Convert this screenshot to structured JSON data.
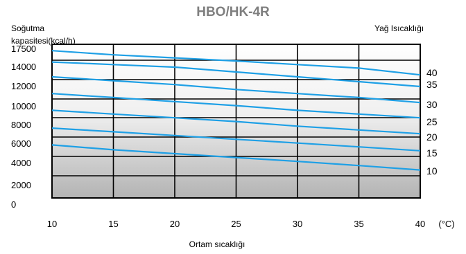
{
  "chart_data": {
    "type": "line",
    "title": "HBO/HK-4R",
    "ylabel_line1": "Soğutma",
    "ylabel_line2": "kapasitesi(kcal/h)",
    "xlabel": "Ortam sıcaklığı",
    "x_unit": "(°C)",
    "right_label": "Yağ Isıcaklığı",
    "x": [
      10,
      15,
      20,
      25,
      30,
      35,
      40
    ],
    "y_ticks": [
      {
        "label": "17500",
        "value": 17500
      },
      {
        "label": "14000",
        "value": 14000
      },
      {
        "label": "12000",
        "value": 12000
      },
      {
        "label": "10000",
        "value": 10000
      },
      {
        "label": "8000",
        "value": 8000
      },
      {
        "label": "6000",
        "value": 6000
      },
      {
        "label": "4000",
        "value": 4000
      },
      {
        "label": "2000",
        "value": 2000
      },
      {
        "label": "0",
        "value": 0
      }
    ],
    "series": [
      {
        "name": "40",
        "values": [
          17200,
          16400,
          15800,
          15200,
          14500,
          13900,
          13200
        ]
      },
      {
        "name": "35",
        "values": [
          15000,
          14500,
          14000,
          13500,
          13000,
          12500,
          12000
        ]
      },
      {
        "name": "30",
        "values": [
          13000,
          12600,
          12200,
          11700,
          11300,
          10900,
          10400
        ]
      },
      {
        "name": "25",
        "values": [
          11300,
          10900,
          10500,
          10100,
          9600,
          9200,
          8800
        ]
      },
      {
        "name": "20",
        "values": [
          9600,
          9200,
          8800,
          8400,
          7900,
          7500,
          7100
        ]
      },
      {
        "name": "15",
        "values": [
          7700,
          7300,
          6900,
          6500,
          6100,
          5700,
          5300
        ]
      },
      {
        "name": "10",
        "values": [
          5900,
          5400,
          5000,
          4600,
          4200,
          3800,
          3400
        ]
      }
    ],
    "line_color": "#1ea0e6",
    "grid": true
  }
}
